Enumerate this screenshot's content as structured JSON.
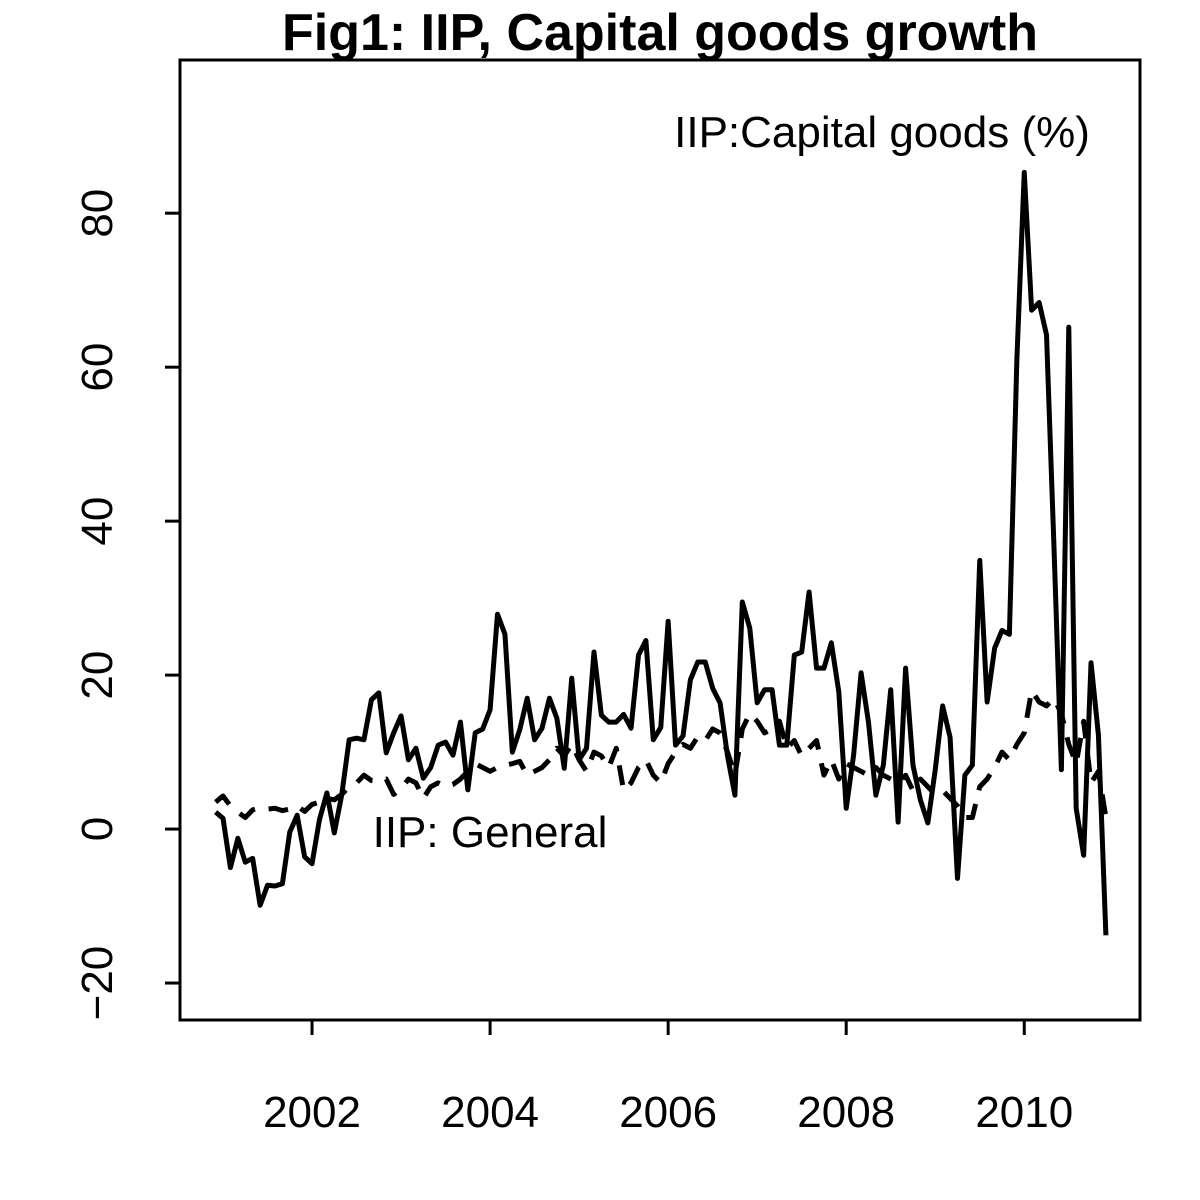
{
  "chart_data": {
    "type": "line",
    "title": "Fig1: IIP, Capital goods growth",
    "annotations": [
      "IIP:Capital goods (%)",
      "IIP: General"
    ],
    "x": [
      2000.917,
      2001,
      2001.083,
      2001.167,
      2001.25,
      2001.333,
      2001.417,
      2001.5,
      2001.583,
      2001.667,
      2001.75,
      2001.833,
      2001.917,
      2002,
      2002.083,
      2002.167,
      2002.25,
      2002.333,
      2002.417,
      2002.5,
      2002.583,
      2002.667,
      2002.75,
      2002.833,
      2002.917,
      2003,
      2003.083,
      2003.167,
      2003.25,
      2003.333,
      2003.417,
      2003.5,
      2003.583,
      2003.667,
      2003.75,
      2003.833,
      2003.917,
      2004,
      2004.083,
      2004.167,
      2004.25,
      2004.333,
      2004.417,
      2004.5,
      2004.583,
      2004.667,
      2004.75,
      2004.833,
      2004.917,
      2005,
      2005.083,
      2005.167,
      2005.25,
      2005.333,
      2005.417,
      2005.5,
      2005.583,
      2005.667,
      2005.75,
      2005.833,
      2005.917,
      2006,
      2006.083,
      2006.167,
      2006.25,
      2006.333,
      2006.417,
      2006.5,
      2006.583,
      2006.667,
      2006.75,
      2006.833,
      2006.917,
      2007,
      2007.083,
      2007.167,
      2007.25,
      2007.333,
      2007.417,
      2007.5,
      2007.583,
      2007.667,
      2007.75,
      2007.833,
      2007.917,
      2008,
      2008.083,
      2008.167,
      2008.25,
      2008.333,
      2008.417,
      2008.5,
      2008.583,
      2008.667,
      2008.75,
      2008.833,
      2008.917,
      2009,
      2009.083,
      2009.167,
      2009.25,
      2009.333,
      2009.417,
      2009.5,
      2009.583,
      2009.667,
      2009.75,
      2009.833,
      2009.917,
      2010,
      2010.083,
      2010.167,
      2010.25,
      2010.333,
      2010.417,
      2010.5,
      2010.583,
      2010.667,
      2010.75,
      2010.833,
      2010.917
    ],
    "series": [
      {
        "name": "IIP:Capital goods (%)",
        "color": "#000000",
        "dash": "solid",
        "values": [
          2.2,
          1.4,
          -5,
          -1.2,
          -4.3,
          -3.8,
          -9.9,
          -7.3,
          -7.4,
          -7.1,
          -0.4,
          1.8,
          -3.6,
          -4.5,
          1.2,
          4.7,
          -0.5,
          4.4,
          11.6,
          11.8,
          11.6,
          16.8,
          17.7,
          9.9,
          12.5,
          14.7,
          9,
          10.5,
          6.6,
          8,
          10.9,
          11.3,
          9.6,
          13.9,
          5.1,
          12.5,
          13,
          15.5,
          27.9,
          25.3,
          10,
          12.9,
          17,
          11.6,
          13.1,
          17,
          14.4,
          7.9,
          19.6,
          9,
          10.5,
          23,
          14.8,
          13.9,
          13.9,
          14.9,
          13.1,
          22.6,
          24.5,
          11.6,
          13.2,
          27,
          10.9,
          12.1,
          19.4,
          21.7,
          21.7,
          18.3,
          16.4,
          9.5,
          4.4,
          29.5,
          26.1,
          16.4,
          18.1,
          18.1,
          10.9,
          10.9,
          22.6,
          23,
          30.8,
          20.9,
          20.9,
          24.2,
          17.8,
          2.7,
          9.6,
          20.3,
          13.9,
          4.4,
          8.3,
          18.1,
          0.9,
          20.9,
          8.3,
          3.8,
          0.8,
          7.7,
          16,
          11.9,
          -6.4,
          7,
          8.3,
          34.9,
          16.5,
          23.5,
          25.8,
          25.3,
          61,
          85.3,
          67.4,
          68.4,
          64.2,
          36.9,
          7.7,
          65.2,
          2.7,
          -3.4,
          21.6,
          12.2,
          -13.8
        ]
      },
      {
        "name": "IIP: General",
        "color": "#000000",
        "dash": "dashed",
        "values": [
          3.5,
          4.3,
          3,
          2.2,
          1.5,
          2.5,
          2.8,
          2.6,
          2.7,
          2.4,
          2.6,
          3,
          2.3,
          3.2,
          3.5,
          4,
          3.8,
          4.5,
          5.5,
          6,
          7,
          6.3,
          6.2,
          6.5,
          4.5,
          5.2,
          6.5,
          6,
          4,
          5.5,
          6,
          5.5,
          5.8,
          6.5,
          7.5,
          8.5,
          8,
          7.5,
          8,
          8.3,
          8.5,
          8.8,
          7,
          7.5,
          8,
          9,
          10.5,
          9.5,
          11,
          9,
          7.5,
          10,
          9.5,
          8,
          10.5,
          5,
          6,
          8,
          9,
          7,
          6,
          8.5,
          10,
          11,
          10.5,
          12,
          11.5,
          13,
          12.5,
          10,
          7,
          13,
          15,
          14,
          12.5,
          13,
          14,
          10.5,
          11.5,
          9.5,
          10.5,
          11.5,
          7,
          9,
          6.5,
          8.5,
          8,
          7.5,
          7,
          8,
          7,
          6.5,
          6,
          7,
          5,
          6.5,
          5.5,
          4.5,
          5,
          4,
          3,
          1.5,
          1.5,
          5.5,
          6.5,
          8,
          10,
          9,
          11,
          12.5,
          18,
          16.5,
          16,
          17,
          15,
          11,
          8.5,
          14,
          6,
          7.5,
          1.5
        ]
      }
    ],
    "xlim": [
      2000.517,
      2011.3
    ],
    "ylim": [
      -24.8,
      99.9
    ],
    "xticks": [
      2002,
      2004,
      2006,
      2008,
      2010
    ],
    "yticks": [
      {
        "value": -20,
        "label": "−20"
      },
      0,
      20,
      40,
      60,
      80
    ]
  }
}
